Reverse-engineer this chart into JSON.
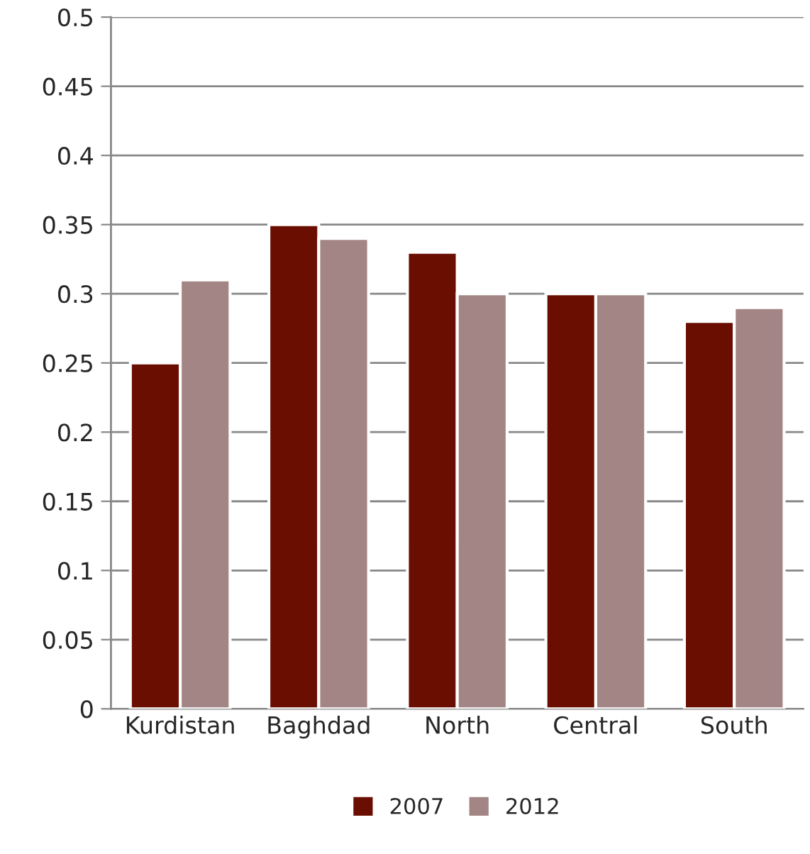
{
  "chart_data": {
    "type": "bar",
    "categories": [
      "Kurdistan",
      "Baghdad",
      "North",
      "Central",
      "South"
    ],
    "series": [
      {
        "name": "2007",
        "color": "#6a0e02",
        "values": [
          0.25,
          0.35,
          0.33,
          0.3,
          0.28
        ]
      },
      {
        "name": "2012",
        "color": "#a38585",
        "values": [
          0.31,
          0.34,
          0.3,
          0.3,
          0.29
        ]
      }
    ],
    "ylim": [
      0,
      0.5
    ],
    "yticks": [
      {
        "value": 0,
        "label": "0"
      },
      0.05,
      0.1,
      0.15,
      0.2,
      0.25,
      0.3,
      0.35,
      0.4,
      0.45,
      0.5
    ],
    "grid": "y",
    "legend": "bottom"
  }
}
